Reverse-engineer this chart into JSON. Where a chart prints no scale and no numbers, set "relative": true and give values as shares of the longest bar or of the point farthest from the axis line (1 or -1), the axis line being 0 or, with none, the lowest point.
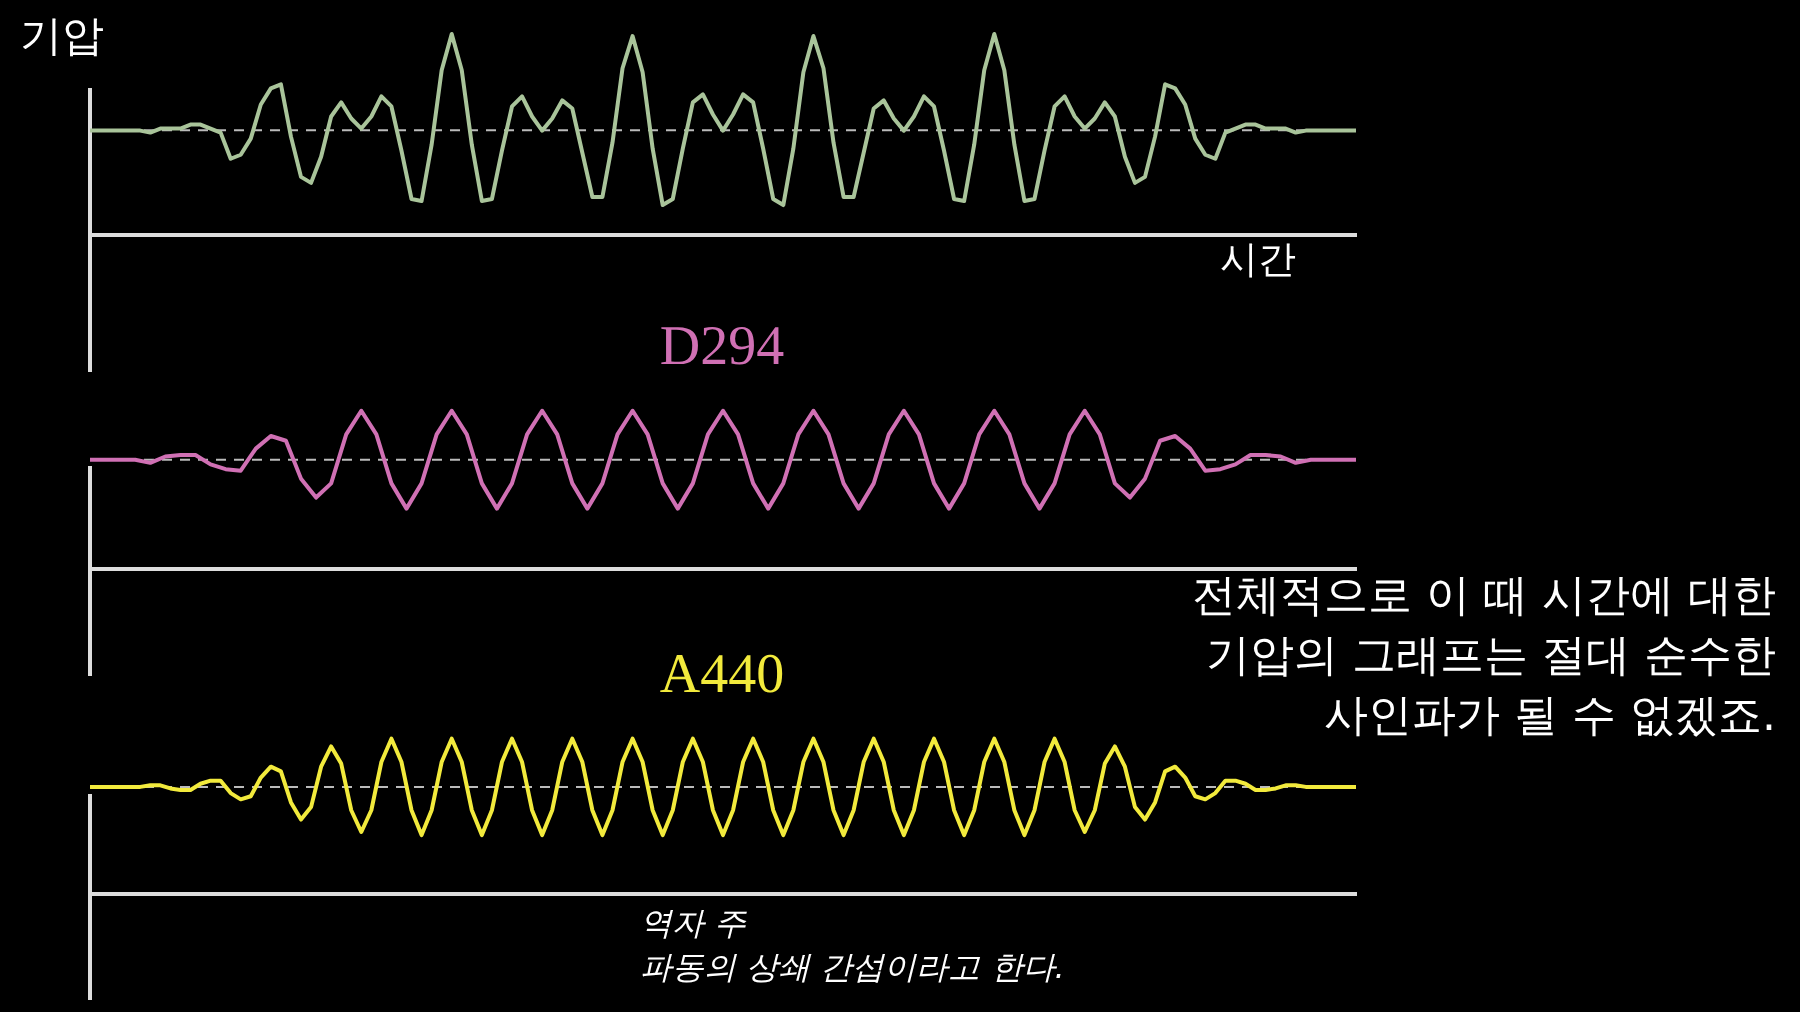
{
  "chart_data": [
    {
      "type": "line",
      "ylabel": "기압",
      "xlabel": "시간",
      "relative": true,
      "marker": "none",
      "ref_lines": [
        {
          "axis": "y",
          "value": 0.522,
          "color": "#bbbbbb",
          "line_style": "dashed"
        }
      ],
      "categories": [
        null,
        null,
        null,
        null,
        null,
        null,
        null,
        null,
        null,
        null,
        null,
        null,
        null,
        null,
        null,
        null,
        null,
        null,
        null,
        null,
        null,
        null,
        null,
        null,
        null,
        null,
        null,
        null,
        null,
        null,
        null,
        null,
        null,
        null,
        null,
        null,
        null,
        null,
        null,
        null,
        null,
        null,
        null,
        null,
        null,
        null,
        null,
        null,
        null,
        null,
        null,
        null,
        null,
        null,
        null,
        null,
        null,
        null,
        null,
        null,
        null,
        null,
        null,
        null,
        null,
        null,
        null,
        null,
        null,
        null,
        null,
        null,
        null,
        null,
        null,
        null,
        null,
        null,
        null,
        null,
        null,
        null,
        null,
        null,
        null,
        null,
        null,
        null,
        null,
        null,
        null,
        null,
        null,
        null,
        null,
        null,
        null,
        null,
        null,
        null,
        null,
        null,
        null,
        null,
        null,
        null,
        null,
        null,
        null,
        null,
        null,
        null,
        null,
        null,
        null,
        null,
        null,
        null,
        null,
        null,
        null,
        null,
        null,
        null,
        null,
        null,
        null
      ],
      "series": [
        {
          "color": "#a9c49a",
          "values": [
            0.52,
            0.52,
            0.52,
            0.52,
            0.52,
            0.52,
            0.51,
            0.53,
            0.53,
            0.53,
            0.55,
            0.55,
            0.53,
            0.51,
            0.38,
            0.4,
            0.48,
            0.65,
            0.73,
            0.75,
            0.49,
            0.29,
            0.26,
            0.39,
            0.59,
            0.66,
            0.58,
            0.53,
            0.59,
            0.69,
            0.64,
            0.42,
            0.18,
            0.17,
            0.45,
            0.82,
            1,
            0.82,
            0.45,
            0.17,
            0.18,
            0.42,
            0.64,
            0.69,
            0.59,
            0.52,
            0.58,
            0.67,
            0.63,
            0.41,
            0.19,
            0.19,
            0.46,
            0.83,
            0.99,
            0.81,
            0.43,
            0.15,
            0.18,
            0.43,
            0.66,
            0.7,
            0.6,
            0.52,
            0.6,
            0.7,
            0.66,
            0.43,
            0.18,
            0.15,
            0.43,
            0.81,
            0.99,
            0.83,
            0.46,
            0.19,
            0.19,
            0.41,
            0.63,
            0.67,
            0.58,
            0.52,
            0.59,
            0.69,
            0.64,
            0.42,
            0.18,
            0.17,
            0.45,
            0.82,
            1,
            0.82,
            0.45,
            0.17,
            0.18,
            0.42,
            0.64,
            0.69,
            0.59,
            0.53,
            0.58,
            0.66,
            0.59,
            0.39,
            0.26,
            0.29,
            0.49,
            0.75,
            0.73,
            0.65,
            0.48,
            0.4,
            0.38,
            0.51,
            0.53,
            0.55,
            0.55,
            0.53,
            0.53,
            0.53,
            0.51,
            0.52,
            0.52,
            0.52,
            0.52,
            0.52,
            0.52
          ]
        }
      ]
    },
    {
      "type": "line",
      "title": "D294",
      "relative": true,
      "marker": "none",
      "ref_lines": [
        {
          "axis": "y",
          "value": 0.69,
          "color": "#bbbbbb",
          "line_style": "dashed"
        }
      ],
      "annotations": [
        "전체적으로 이 때 시간에 대한 기압의 그래프는 절대 순수한 사인파가 될 수 없겠죠."
      ],
      "categories": [
        null,
        null,
        null,
        null,
        null,
        null,
        null,
        null,
        null,
        null,
        null,
        null,
        null,
        null,
        null,
        null,
        null,
        null,
        null,
        null,
        null,
        null,
        null,
        null,
        null,
        null,
        null,
        null,
        null,
        null,
        null,
        null,
        null,
        null,
        null,
        null,
        null,
        null,
        null,
        null,
        null,
        null,
        null,
        null,
        null,
        null,
        null,
        null,
        null,
        null,
        null,
        null,
        null,
        null,
        null,
        null,
        null,
        null,
        null,
        null,
        null,
        null,
        null,
        null,
        null,
        null,
        null,
        null,
        null,
        null,
        null,
        null,
        null,
        null,
        null,
        null,
        null,
        null,
        null,
        null,
        null,
        null,
        null,
        null,
        null
      ],
      "series": [
        {
          "color": "#d070b4",
          "values": [
            0.69,
            0.69,
            0.69,
            0.69,
            0.67,
            0.71,
            0.72,
            0.72,
            0.66,
            0.63,
            0.62,
            0.76,
            0.84,
            0.81,
            0.57,
            0.45,
            0.54,
            0.85,
            1,
            0.85,
            0.54,
            0.38,
            0.54,
            0.85,
            1,
            0.85,
            0.54,
            0.38,
            0.54,
            0.85,
            1,
            0.85,
            0.54,
            0.38,
            0.54,
            0.85,
            1,
            0.85,
            0.54,
            0.38,
            0.54,
            0.85,
            1,
            0.85,
            0.54,
            0.38,
            0.54,
            0.85,
            1,
            0.85,
            0.54,
            0.38,
            0.54,
            0.85,
            1,
            0.85,
            0.54,
            0.38,
            0.54,
            0.85,
            1,
            0.85,
            0.54,
            0.38,
            0.54,
            0.85,
            1,
            0.85,
            0.54,
            0.45,
            0.57,
            0.81,
            0.84,
            0.76,
            0.62,
            0.63,
            0.66,
            0.72,
            0.72,
            0.71,
            0.67,
            0.69,
            0.69,
            0.69,
            0.69
          ]
        }
      ]
    },
    {
      "type": "line",
      "title": "A440",
      "relative": true,
      "marker": "none",
      "ref_lines": [
        {
          "axis": "y",
          "value": 0.69,
          "color": "#bbbbbb",
          "line_style": "dashed"
        }
      ],
      "annotations": [
        "역자 주",
        "파동의 상쇄 간섭이라고 한다."
      ],
      "categories": [
        null,
        null,
        null,
        null,
        null,
        null,
        null,
        null,
        null,
        null,
        null,
        null,
        null,
        null,
        null,
        null,
        null,
        null,
        null,
        null,
        null,
        null,
        null,
        null,
        null,
        null,
        null,
        null,
        null,
        null,
        null,
        null,
        null,
        null,
        null,
        null,
        null,
        null,
        null,
        null,
        null,
        null,
        null,
        null,
        null,
        null,
        null,
        null,
        null,
        null,
        null,
        null,
        null,
        null,
        null,
        null,
        null,
        null,
        null,
        null,
        null,
        null,
        null,
        null,
        null,
        null,
        null,
        null,
        null,
        null,
        null,
        null,
        null,
        null,
        null,
        null,
        null,
        null,
        null,
        null,
        null,
        null,
        null,
        null,
        null,
        null,
        null,
        null,
        null,
        null,
        null,
        null,
        null,
        null,
        null,
        null,
        null,
        null,
        null,
        null,
        null,
        null,
        null,
        null,
        null,
        null,
        null,
        null,
        null,
        null,
        null,
        null,
        null,
        null,
        null,
        null,
        null,
        null,
        null,
        null,
        null,
        null,
        null,
        null,
        null,
        null,
        null
      ],
      "series": [
        {
          "color": "#f2ea3c",
          "values": [
            0.69,
            0.69,
            0.69,
            0.69,
            0.69,
            0.69,
            0.7,
            0.7,
            0.68,
            0.67,
            0.67,
            0.71,
            0.73,
            0.73,
            0.65,
            0.61,
            0.63,
            0.75,
            0.82,
            0.79,
            0.59,
            0.48,
            0.56,
            0.82,
            0.95,
            0.84,
            0.54,
            0.4,
            0.54,
            0.85,
            1,
            0.85,
            0.54,
            0.38,
            0.54,
            0.85,
            1,
            0.85,
            0.54,
            0.38,
            0.54,
            0.85,
            1,
            0.85,
            0.54,
            0.38,
            0.54,
            0.85,
            1,
            0.85,
            0.54,
            0.38,
            0.54,
            0.85,
            1,
            0.85,
            0.54,
            0.38,
            0.54,
            0.85,
            1,
            0.85,
            0.54,
            0.38,
            0.54,
            0.85,
            1,
            0.85,
            0.54,
            0.38,
            0.54,
            0.85,
            1,
            0.85,
            0.54,
            0.38,
            0.54,
            0.85,
            1,
            0.85,
            0.54,
            0.38,
            0.54,
            0.85,
            1,
            0.85,
            0.54,
            0.38,
            0.54,
            0.85,
            1,
            0.85,
            0.54,
            0.38,
            0.54,
            0.85,
            1,
            0.85,
            0.54,
            0.4,
            0.54,
            0.84,
            0.95,
            0.82,
            0.56,
            0.48,
            0.59,
            0.79,
            0.82,
            0.75,
            0.63,
            0.61,
            0.65,
            0.73,
            0.73,
            0.71,
            0.67,
            0.67,
            0.68,
            0.7,
            0.7,
            0.69,
            0.69,
            0.69,
            0.69,
            0.69,
            0.69
          ]
        }
      ]
    }
  ]
}
